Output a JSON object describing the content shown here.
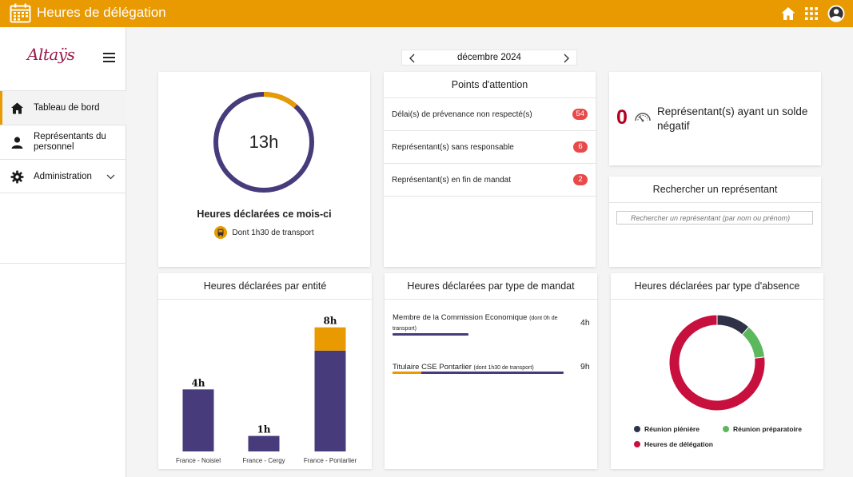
{
  "app": {
    "title": "Heures de délégation",
    "brand_color": "#e89a00"
  },
  "topbar": {
    "icons": [
      "calendar-icon",
      "home-icon",
      "apps-grid-icon",
      "user-avatar-icon"
    ]
  },
  "sidebar": {
    "logo": "Altaÿs",
    "items": [
      {
        "label": "Tableau de bord",
        "icon": "home-icon",
        "active": true
      },
      {
        "label": "Représentants du personnel",
        "icon": "user-icon",
        "active": false
      },
      {
        "label": "Administration",
        "icon": "gear-icon",
        "active": false,
        "expandable": true
      }
    ]
  },
  "month": {
    "label": "décembre 2024"
  },
  "hours_card": {
    "value": "13h",
    "caption": "Heures déclarées ce mois-ci",
    "transport_note": "Dont 1h30 de transport",
    "transport_fraction": 0.115,
    "colors": {
      "main": "#473b7b",
      "transport": "#e89a00"
    }
  },
  "attention": {
    "title": "Points d'attention",
    "rows": [
      {
        "label": "Délai(s) de prévenance non respecté(s)",
        "count": "54"
      },
      {
        "label": "Représentant(s) sans responsable",
        "count": "6"
      },
      {
        "label": "Représentant(s) en fin de mandat",
        "count": "2"
      }
    ]
  },
  "negative": {
    "count": "0",
    "label": "Représentant(s) ayant un solde négatif"
  },
  "search": {
    "title": "Rechercher un représentant",
    "placeholder": "Rechercher un représentant (par nom ou prénom)"
  },
  "entity_card": {
    "title": "Heures déclarées par entité"
  },
  "mandat_card": {
    "title": "Heures déclarées par type de mandat",
    "rows": [
      {
        "name": "Membre de la Commission Economique",
        "note": "(dont 0h de transport)",
        "value": "4h",
        "total_fraction": 0.44,
        "transport_fraction": 0
      },
      {
        "name": "Titulaire CSE Pontarlier",
        "note": "(dont 1h30 de transport)",
        "value": "9h",
        "total_fraction": 1.0,
        "transport_fraction": 0.167
      }
    ]
  },
  "absence_card": {
    "title": "Heures déclarées par type d'absence"
  },
  "chart_data": [
    {
      "type": "bar",
      "categories": [
        "France - Noisiel",
        "France - Cergy",
        "France - Pontarlier"
      ],
      "data_labels": [
        "4h",
        "1h",
        "8h"
      ],
      "series": [
        {
          "values": [
            4,
            1,
            6.5
          ],
          "color": "#473b7b"
        },
        {
          "values": [
            0,
            0,
            1.5
          ],
          "color": "#e89a00"
        }
      ],
      "ylim": [
        0,
        8.5
      ]
    },
    {
      "type": "pie",
      "labels": [
        "Réunion plénière",
        "Réunion préparatoire",
        "Heures de délégation"
      ],
      "values": [
        1.5,
        1.5,
        10
      ],
      "colors": [
        "#2e3148",
        "#5cb85c",
        "#c8103e"
      ]
    }
  ]
}
